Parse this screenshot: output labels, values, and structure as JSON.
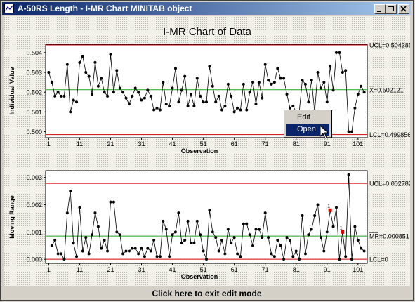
{
  "window": {
    "title": "A-50RS Length - I-MR Chart MINITAB object",
    "status_text": "Click here to exit edit mode"
  },
  "context_menu": {
    "items": [
      {
        "label": "Edit",
        "selected": false
      },
      {
        "label": "Open",
        "selected": true
      }
    ]
  },
  "chart_data": [
    {
      "type": "line",
      "title": "I-MR Chart of Data",
      "ylabel": "Individual Value",
      "xlabel": "Observation",
      "x_ticks": [
        1,
        11,
        21,
        31,
        41,
        51,
        61,
        71,
        81,
        91,
        101
      ],
      "y_ticks": [
        "0.500",
        "0.501",
        "0.502",
        "0.503",
        "0.504"
      ],
      "xlim": [
        0,
        104
      ],
      "ylim": [
        0.4997,
        0.50442
      ],
      "limits": {
        "UCL": 0.504385,
        "center": 0.502121,
        "LCL": 0.499856
      },
      "limit_labels": {
        "UCL": "UCL=0.504385",
        "center": "X=0.502121",
        "LCL": "LCL=0.499856"
      },
      "series": [
        {
          "values": [
            0.503,
            0.5025,
            0.5018,
            0.502,
            0.5018,
            0.5018,
            0.5034,
            0.501,
            0.5016,
            0.5015,
            0.5035,
            0.5038,
            0.503,
            0.5028,
            0.5019,
            0.5035,
            0.5023,
            0.5027,
            0.502,
            0.5018,
            0.5039,
            0.502,
            0.5031,
            0.5022,
            0.502,
            0.5017,
            0.5014,
            0.5018,
            0.5022,
            0.502,
            0.5016,
            0.5017,
            0.5021,
            0.5018,
            0.5011,
            0.5012,
            0.5011,
            0.5025,
            0.5014,
            0.5013,
            0.5022,
            0.5032,
            0.5015,
            0.5021,
            0.5028,
            0.5013,
            0.5019,
            0.5013,
            0.5027,
            0.5018,
            0.5015,
            0.5015,
            0.5033,
            0.5023,
            0.5015,
            0.5018,
            0.5011,
            0.5013,
            0.5024,
            0.5018,
            0.501,
            0.5012,
            0.5011,
            0.5024,
            0.5011,
            0.502,
            0.5025,
            0.5014,
            0.5025,
            0.5017,
            0.5034,
            0.5026,
            0.5024,
            0.5025,
            0.5032,
            0.5027,
            0.5027,
            0.5019,
            0.5012,
            0.5013,
            0.501,
            0.501,
            0.5026,
            0.5024,
            0.5015,
            0.5026,
            0.501,
            0.503,
            0.5022,
            0.5025,
            0.5015,
            0.5033,
            0.5021,
            0.504,
            0.504,
            0.503,
            0.5031,
            0.5,
            0.5,
            0.5012,
            0.5019,
            0.5023,
            0.502
          ],
          "markers": "circle"
        }
      ]
    },
    {
      "type": "line",
      "ylabel": "Moving Range",
      "xlabel": "Observation",
      "x_ticks": [
        1,
        11,
        21,
        31,
        41,
        51,
        61,
        71,
        81,
        91,
        101
      ],
      "y_ticks": [
        "0.000",
        "0.001",
        "0.002",
        "0.003"
      ],
      "xlim": [
        0,
        104
      ],
      "ylim": [
        -0.00015,
        0.00325
      ],
      "limits": {
        "UCL": 0.002782,
        "center": 0.000851,
        "LCL": 0
      },
      "limit_labels": {
        "UCL": "UCL=0.002782",
        "center": "MR=0.000851",
        "LCL": "LCL=0"
      },
      "out_of_control": [
        {
          "index": 92,
          "label": "1"
        },
        {
          "index": 96,
          "label": "1"
        }
      ],
      "series": [
        {
          "values": [
            null,
            0.0005,
            0.0007,
            0.0002,
            0.0002,
            0.0,
            0.0017,
            0.0025,
            0.0006,
            0.0001,
            0.0019,
            0.0003,
            0.0008,
            0.0002,
            0.0009,
            0.0017,
            0.0012,
            0.0004,
            0.0007,
            0.0003,
            0.0021,
            0.0021,
            0.001,
            0.0009,
            0.0002,
            0.0003,
            0.0003,
            0.0004,
            0.0004,
            0.0002,
            0.0004,
            0.0001,
            0.0004,
            0.0003,
            0.0007,
            0.0001,
            0.0001,
            0.0014,
            0.0011,
            0.0001,
            0.0009,
            0.001,
            0.0017,
            0.0006,
            0.0007,
            0.0014,
            0.0006,
            0.0006,
            0.0014,
            0.0009,
            0.0003,
            0.0,
            0.0018,
            0.001,
            0.0008,
            0.0003,
            0.0007,
            0.0002,
            0.0011,
            0.0006,
            0.0008,
            0.0002,
            0.0001,
            0.0013,
            0.0013,
            0.0009,
            0.0005,
            0.0011,
            0.0011,
            0.0008,
            0.0017,
            0.0008,
            0.0002,
            0.0001,
            0.0007,
            0.0005,
            0.0,
            0.0008,
            0.0007,
            0.0001,
            0.0003,
            0.0,
            0.0016,
            0.0002,
            0.0009,
            0.0011,
            0.0016,
            0.002,
            0.0008,
            0.0003,
            0.001,
            0.0018,
            0.0012,
            0.0019,
            0.0,
            0.001,
            0.0001,
            0.0031,
            0.0,
            0.0012,
            0.0007,
            0.0004,
            0.0003
          ],
          "markers": "circle"
        }
      ]
    }
  ]
}
